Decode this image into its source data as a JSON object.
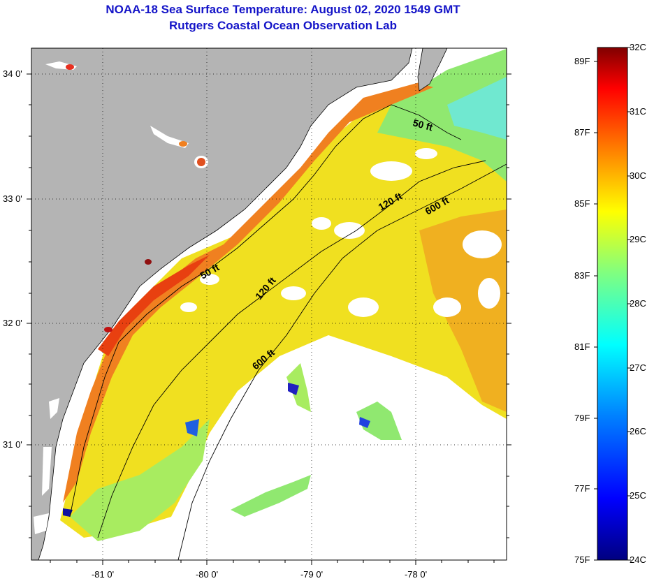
{
  "header": {
    "title": "NOAA-18 Sea Surface Temperature:  August 02, 2020 1549 GMT",
    "subtitle": "Rutgers Coastal Ocean Observation Lab"
  },
  "map": {
    "latitude_labels": [
      "34 0'",
      "33 0'",
      "32 0'",
      "31 0'"
    ],
    "longitude_labels": [
      "-81 0'",
      "-80 0'",
      "-79 0'",
      "-78 0'"
    ],
    "contour_labels": [
      "50 ft",
      "120 ft",
      "600 ft",
      "50 ft",
      "120 ft",
      "600 ft"
    ],
    "land_color": "#b4b4b4",
    "no_data_color": "#ffffff"
  },
  "colorbar": {
    "fahrenheit_labels": [
      "89F",
      "87F",
      "85F",
      "83F",
      "81F",
      "79F",
      "77F",
      "75F"
    ],
    "celsius_labels": [
      "32C",
      "31C",
      "30C",
      "29C",
      "28C",
      "27C",
      "26C",
      "25C",
      "24C"
    ],
    "range_c": [
      24,
      32
    ],
    "colors": [
      "#000080",
      "#0000ff",
      "#0080ff",
      "#00ffff",
      "#80ff80",
      "#ffff00",
      "#ff8000",
      "#ff0000",
      "#800000"
    ]
  }
}
